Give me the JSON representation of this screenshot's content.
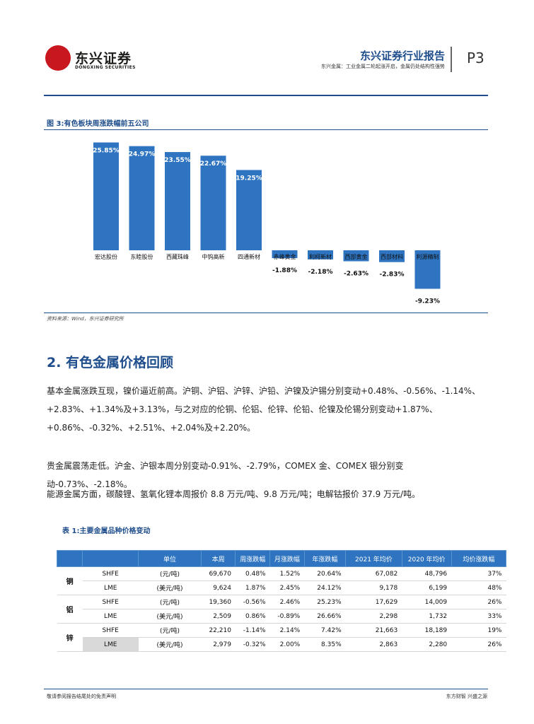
{
  "header": {
    "logo_text": "东兴证券",
    "logo_sub": "DONGXING SECURITIES",
    "report_title": "东兴证券行业报告",
    "report_subtitle": "东兴金属：工业金属二轮起涨开启，金属仍处结构性强势",
    "page_number": "P3"
  },
  "figure": {
    "title": "图 3:有色板块周涨跌幅前五公司",
    "source": "资料来源：Wind，东兴证券研究所"
  },
  "chart_data": {
    "type": "bar",
    "categories": [
      "宏达股份",
      "东睦股份",
      "西藏珠峰",
      "中钨高新",
      "四通新材",
      "赤峰黄金",
      "利柯新材",
      "西部黄金",
      "西部材料",
      "利源精制"
    ],
    "values": [
      25.85,
      24.97,
      23.55,
      22.67,
      19.25,
      -1.88,
      -2.18,
      -2.63,
      -2.83,
      -9.23
    ],
    "data_labels": [
      "25.85%",
      "24.97%",
      "23.55%",
      "22.67%",
      "19.25%",
      "-1.88%",
      "-2.18%",
      "-2.63%",
      "-2.83%",
      "-9.23%"
    ],
    "ylim": [
      -10,
      28
    ],
    "color": "#2e74c0",
    "grid": false
  },
  "section": {
    "title": "2. 有色金属价格回顾",
    "para1": "基本金属涨跌互现，镍价逼近前高。沪铜、沪铝、沪锌、沪铅、沪镍及沪锡分别变动+0.48%、-0.56%、-1.14%、+2.83%、+1.34%及+3.13%，与之对应的伦铜、伦铝、伦锌、伦铅、伦镍及伦锡分别变动+1.87%、+0.86%、-0.32%、+2.51%、+2.04%及+2.20%。",
    "para2": "贵金属震荡走低。沪金、沪银本周分别变动-0.91%、-2.79%，COMEX 金、COMEX 银分别变动-0.73%、-2.18%。",
    "para3": "能源金属方面，碳酸锂、氢氧化锂本周报价 8.8 万元/吨、9.8 万元/吨；电解钴报价 37.9 万元/吨。"
  },
  "table": {
    "title": "表 1:主要金属品种价格变动",
    "headers": [
      "单位",
      "本周",
      "周涨跌幅",
      "月涨跌幅",
      "年涨跌幅",
      "2021 年均价",
      "2020 年均价",
      "均价涨跌幅"
    ],
    "metals": [
      "铜",
      "铝",
      "锌"
    ],
    "rows": [
      [
        "SHFE",
        "(元/吨)",
        "69,670",
        "0.48%",
        "1.52%",
        "20.64%",
        "67,082",
        "48,796",
        "37%"
      ],
      [
        "LME",
        "(美元/吨)",
        "9,624",
        "1.87%",
        "2.45%",
        "24.12%",
        "9,178",
        "6,199",
        "48%"
      ],
      [
        "SHFE",
        "(元/吨)",
        "19,360",
        "-0.56%",
        "2.46%",
        "25.23%",
        "17,629",
        "14,009",
        "26%"
      ],
      [
        "LME",
        "(美元/吨)",
        "2,509",
        "0.86%",
        "-0.89%",
        "26.66%",
        "2,298",
        "1,732",
        "33%"
      ],
      [
        "SHFE",
        "(元/吨)",
        "22,210",
        "-1.14%",
        "2.14%",
        "7.42%",
        "21,663",
        "18,189",
        "19%"
      ],
      [
        "LME",
        "(美元/吨)",
        "2,979",
        "-0.32%",
        "2.00%",
        "8.35%",
        "2,863",
        "2,280",
        "26%"
      ]
    ]
  },
  "footer": {
    "left": "敬请参阅报告结尾处的免责声明",
    "right": "东方财智 兴盛之源"
  }
}
